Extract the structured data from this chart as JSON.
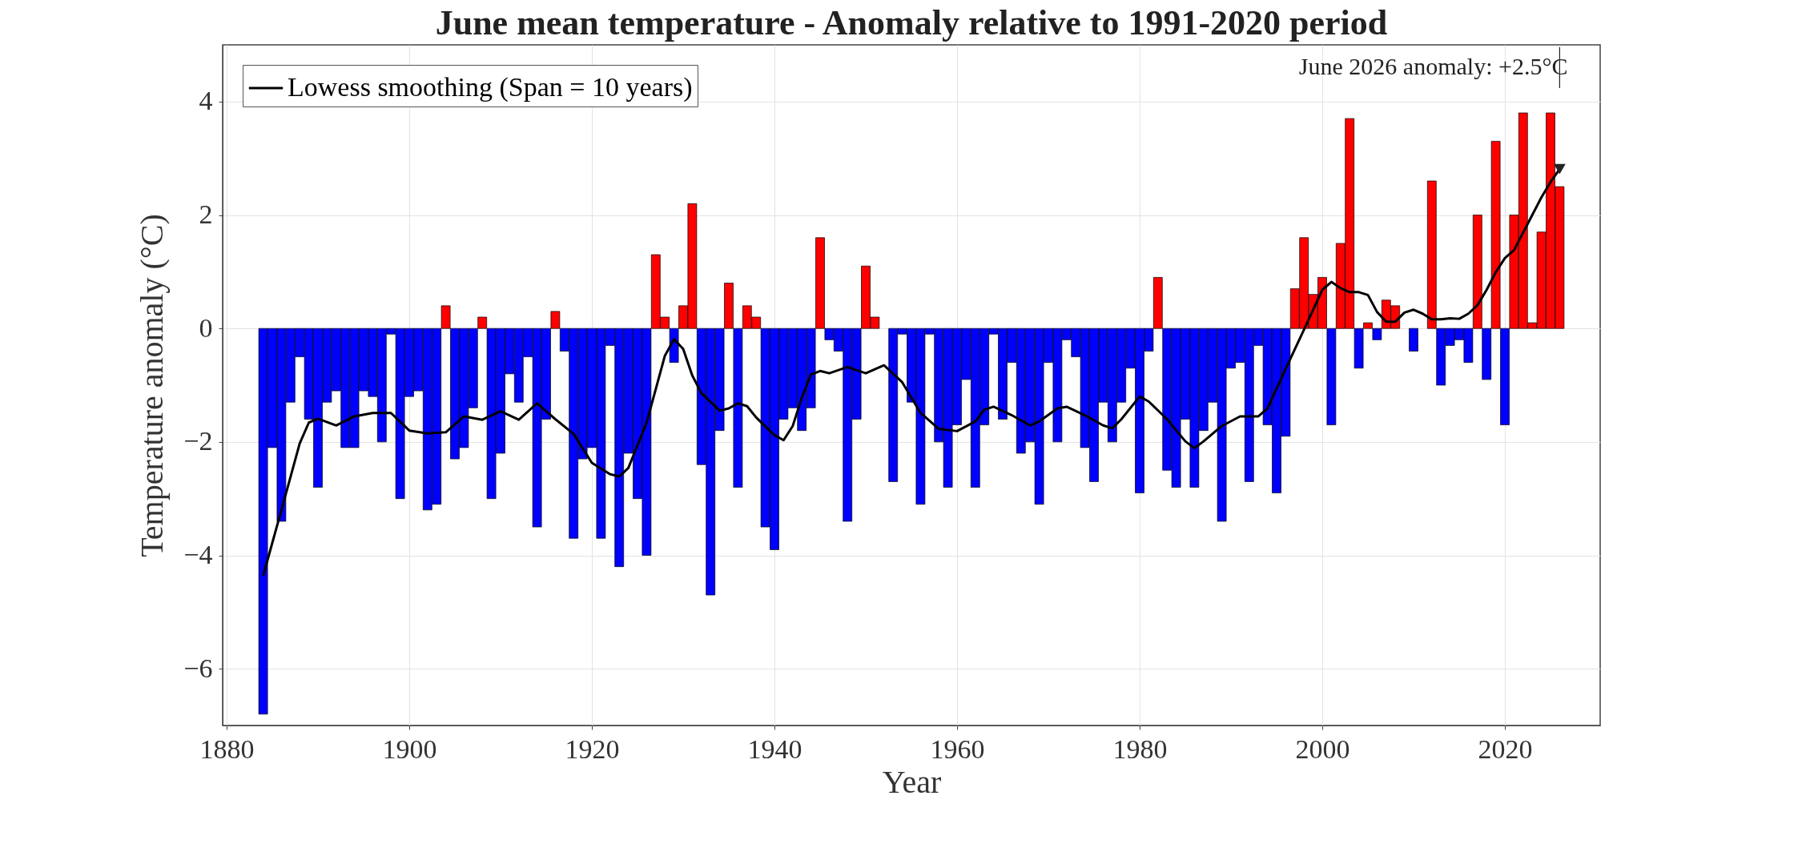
{
  "chart_data": {
    "type": "bar",
    "title": "June mean temperature - Anomaly relative to 1991-2020 period",
    "xlabel": "Year",
    "ylabel": "Temperature anomaly (°C)",
    "x": [
      1884,
      1885,
      1886,
      1887,
      1888,
      1889,
      1890,
      1891,
      1892,
      1893,
      1894,
      1895,
      1896,
      1897,
      1898,
      1899,
      1900,
      1901,
      1902,
      1903,
      1904,
      1905,
      1906,
      1907,
      1908,
      1909,
      1910,
      1911,
      1912,
      1913,
      1914,
      1915,
      1916,
      1917,
      1918,
      1919,
      1920,
      1921,
      1922,
      1923,
      1924,
      1925,
      1926,
      1927,
      1928,
      1929,
      1930,
      1931,
      1932,
      1933,
      1934,
      1935,
      1936,
      1937,
      1938,
      1939,
      1940,
      1941,
      1942,
      1943,
      1944,
      1945,
      1946,
      1947,
      1948,
      1949,
      1950,
      1951,
      1952,
      1953,
      1954,
      1955,
      1956,
      1957,
      1958,
      1959,
      1960,
      1961,
      1962,
      1963,
      1964,
      1965,
      1966,
      1967,
      1968,
      1969,
      1970,
      1971,
      1972,
      1973,
      1974,
      1975,
      1976,
      1977,
      1978,
      1979,
      1980,
      1981,
      1982,
      1983,
      1984,
      1985,
      1986,
      1987,
      1988,
      1989,
      1990,
      1991,
      1992,
      1993,
      1994,
      1995,
      1996,
      1997,
      1998,
      1999,
      2000,
      2001,
      2002,
      2003,
      2004,
      2005,
      2006,
      2007,
      2008,
      2009,
      2010,
      2011,
      2012,
      2013,
      2014,
      2015,
      2016,
      2017,
      2018,
      2019,
      2020,
      2021,
      2022,
      2023,
      2024,
      2025,
      2026
    ],
    "series": [
      {
        "values": [
          -6.8,
          -2.1,
          -3.4,
          -1.3,
          -0.5,
          -1.6,
          -2.8,
          -1.3,
          -1.1,
          -2.1,
          -2.1,
          -1.1,
          -1.2,
          -2.0,
          -0.1,
          -3.0,
          -1.2,
          -1.1,
          -3.2,
          -3.1,
          0.4,
          -2.3,
          -2.1,
          -1.4,
          0.2,
          -3.0,
          -2.2,
          -0.8,
          -1.3,
          -0.5,
          -3.5,
          -1.6,
          0.3,
          -0.4,
          -3.7,
          -2.3,
          -2.1,
          -3.7,
          -0.3,
          -4.2,
          -2.2,
          -3.0,
          -4.0,
          1.3,
          0.2,
          -0.6,
          0.4,
          2.2,
          -2.4,
          -4.7,
          -1.8,
          0.8,
          -2.8,
          0.4,
          0.2,
          -3.5,
          -3.9,
          -1.6,
          -1.4,
          -1.8,
          -1.4,
          1.6,
          -0.2,
          -0.4,
          -3.4,
          -1.6,
          1.1,
          0.2,
          null,
          -2.7,
          -0.1,
          -1.3,
          -3.1,
          -0.1,
          -2.0,
          -2.8,
          -1.7,
          -0.9,
          -2.8,
          -1.7,
          -0.1,
          -1.6,
          -0.6,
          -2.2,
          -2.0,
          -3.1,
          -0.6,
          -2.0,
          -0.2,
          -0.5,
          -2.1,
          -2.7,
          -1.3,
          -2.0,
          -1.3,
          -0.7,
          -2.9,
          -0.4,
          0.9,
          -2.5,
          -2.8,
          -1.6,
          -2.8,
          -1.8,
          -1.3,
          -3.4,
          -0.7,
          -0.6,
          -2.7,
          -0.3,
          -1.7,
          -2.9,
          -1.9,
          0.7,
          1.6,
          0.6,
          0.9,
          -1.7,
          1.5,
          3.7,
          -0.7,
          0.1,
          -0.2,
          0.5,
          0.4,
          null,
          -0.4,
          null,
          2.6,
          -1.0,
          -0.3,
          -0.2,
          -0.6,
          2.0,
          -0.9,
          3.3,
          -1.7,
          2.0,
          3.8,
          0.1,
          1.7,
          3.8,
          2.5
        ],
        "colors": [
          "#0000ff",
          "#0000ff",
          "#0000ff",
          "#0000ff",
          "#0000ff",
          "#0000ff",
          "#0000ff",
          "#0000ff",
          "#0000ff",
          "#0000ff",
          "#0000ff",
          "#0000ff",
          "#0000ff",
          "#0000ff",
          "#0000ff",
          "#0000ff",
          "#0000ff",
          "#0000ff",
          "#0000ff",
          "#0000ff",
          "#ff0000",
          "#0000ff",
          "#0000ff",
          "#0000ff",
          "#ff0000",
          "#0000ff",
          "#0000ff",
          "#0000ff",
          "#0000ff",
          "#0000ff",
          "#0000ff",
          "#0000ff",
          "#ff0000",
          "#0000ff",
          "#0000ff",
          "#0000ff",
          "#0000ff",
          "#0000ff",
          "#0000ff",
          "#0000ff",
          "#0000ff",
          "#0000ff",
          "#0000ff",
          "#ff0000",
          "#ff0000",
          "#0000ff",
          "#ff0000",
          "#ff0000",
          "#0000ff",
          "#0000ff",
          "#0000ff",
          "#ff0000",
          "#0000ff",
          "#ff0000",
          "#ff0000",
          "#0000ff",
          "#0000ff",
          "#0000ff",
          "#0000ff",
          "#0000ff",
          "#0000ff",
          "#ff0000",
          "#0000ff",
          "#0000ff",
          "#0000ff",
          "#0000ff",
          "#ff0000",
          "#ff0000",
          "#0000ff",
          "#0000ff",
          "#0000ff",
          "#0000ff",
          "#0000ff",
          "#0000ff",
          "#0000ff",
          "#0000ff",
          "#0000ff",
          "#0000ff",
          "#0000ff",
          "#0000ff",
          "#0000ff",
          "#0000ff",
          "#0000ff",
          "#0000ff",
          "#0000ff",
          "#0000ff",
          "#0000ff",
          "#0000ff",
          "#0000ff",
          "#0000ff",
          "#0000ff",
          "#0000ff",
          "#0000ff",
          "#0000ff",
          "#0000ff",
          "#0000ff",
          "#0000ff",
          "#0000ff",
          "#ff0000",
          "#0000ff",
          "#0000ff",
          "#0000ff",
          "#0000ff",
          "#0000ff",
          "#0000ff",
          "#0000ff",
          "#0000ff",
          "#0000ff",
          "#0000ff",
          "#0000ff",
          "#0000ff",
          "#0000ff",
          "#0000ff",
          "#ff0000",
          "#ff0000",
          "#ff0000",
          "#ff0000",
          "#0000ff",
          "#ff0000",
          "#ff0000",
          "#0000ff",
          "#ff0000",
          "#0000ff",
          "#ff0000",
          "#ff0000",
          "#ff0000",
          "#0000ff",
          "#ff0000",
          "#ff0000",
          "#0000ff",
          "#0000ff",
          "#0000ff",
          "#0000ff",
          "#ff0000",
          "#0000ff",
          "#ff0000",
          "#0000ff",
          "#ff0000",
          "#ff0000",
          "#ff0000",
          "#ff0000",
          "#ff0000",
          "#ff0000"
        ]
      },
      {
        "type": "line",
        "name": "Lowess smoothing (Span = 10 years)",
        "color": "#000000",
        "x": [
          1884,
          1886,
          1888,
          1889,
          1890,
          1892,
          1894,
          1896,
          1898,
          1900,
          1902,
          1904,
          1906,
          1908,
          1910,
          1912,
          1914,
          1916,
          1918,
          1920,
          1922,
          1923,
          1924,
          1926,
          1928,
          1929,
          1930,
          1931,
          1932,
          1934,
          1935,
          1936,
          1937,
          1938,
          1940,
          1941,
          1942,
          1943,
          1944,
          1945,
          1946,
          1948,
          1950,
          1952,
          1954,
          1956,
          1958,
          1960,
          1962,
          1963,
          1964,
          1966,
          1968,
          1969,
          1971,
          1972,
          1974,
          1976,
          1977,
          1978,
          1980,
          1981,
          1983,
          1985,
          1986,
          1987,
          1989,
          1991,
          1993,
          1994,
          1995,
          1996,
          1998,
          2000,
          2001,
          2002,
          2003,
          2004,
          2005,
          2006,
          2007,
          2008,
          2009,
          2010,
          2011,
          2012,
          2013,
          2014,
          2015,
          2016,
          2017,
          2018,
          2019,
          2020,
          2021,
          2022,
          2023,
          2024,
          2025,
          2026
        ],
        "values": [
          -4.36,
          -3.2,
          -2.03,
          -1.66,
          -1.59,
          -1.71,
          -1.55,
          -1.49,
          -1.49,
          -1.8,
          -1.85,
          -1.83,
          -1.55,
          -1.61,
          -1.46,
          -1.61,
          -1.32,
          -1.6,
          -1.86,
          -2.37,
          -2.57,
          -2.61,
          -2.46,
          -1.66,
          -0.48,
          -0.19,
          -0.36,
          -0.83,
          -1.14,
          -1.45,
          -1.41,
          -1.32,
          -1.37,
          -1.57,
          -1.88,
          -1.97,
          -1.72,
          -1.22,
          -0.81,
          -0.75,
          -0.79,
          -0.68,
          -0.79,
          -0.65,
          -0.95,
          -1.49,
          -1.77,
          -1.81,
          -1.64,
          -1.43,
          -1.38,
          -1.53,
          -1.71,
          -1.64,
          -1.41,
          -1.38,
          -1.53,
          -1.71,
          -1.76,
          -1.6,
          -1.2,
          -1.29,
          -1.6,
          -1.99,
          -2.11,
          -1.99,
          -1.72,
          -1.55,
          -1.55,
          -1.41,
          -1.06,
          -0.71,
          -0.02,
          0.68,
          0.82,
          0.71,
          0.64,
          0.64,
          0.59,
          0.29,
          0.12,
          0.12,
          0.28,
          0.33,
          0.26,
          0.16,
          0.16,
          0.18,
          0.17,
          0.26,
          0.41,
          0.68,
          0.99,
          1.24,
          1.38,
          1.69,
          2.0,
          2.31,
          2.58,
          2.81
        ]
      }
    ],
    "xlim": [
      1880,
      2030
    ],
    "xticks": [
      1880,
      1900,
      1920,
      1940,
      1960,
      1980,
      2000,
      2020
    ],
    "ylim": [
      -7,
      5
    ],
    "yticks": [
      -6,
      -4,
      -2,
      0,
      2,
      4
    ],
    "grid": true,
    "legend": "top left",
    "line_style": "solid",
    "annotations": [
      "June 2026 anomaly: +2.5°C"
    ]
  }
}
